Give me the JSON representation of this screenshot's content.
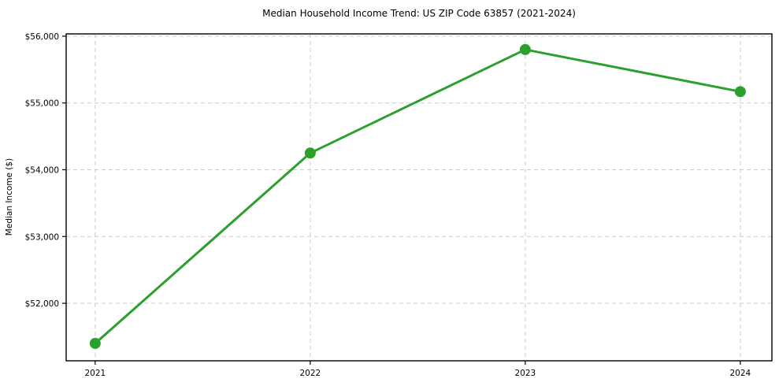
{
  "figure": {
    "background": "#ffffff"
  },
  "chart_data": {
    "type": "line",
    "title": "Median Household Income Trend: US ZIP Code 63857 (2021-2024)",
    "xlabel": "",
    "ylabel": "Median Income ($)",
    "x": [
      2021,
      2022,
      2023,
      2024
    ],
    "values": [
      51400,
      54250,
      55800,
      55170
    ],
    "xtick_labels": [
      "2021",
      "2022",
      "2023",
      "2024"
    ],
    "yticks": [
      52000,
      53000,
      54000,
      55000,
      56000
    ],
    "ytick_labels": [
      "$52,000",
      "$53,000",
      "$54,000",
      "$55,000",
      "$56,000"
    ],
    "xlim": [
      2020.865,
      2024.147
    ],
    "ylim": [
      51139,
      56035
    ],
    "grid": "dashed",
    "legend_position": "none",
    "line_color": "#2ca02c",
    "marker": "circle",
    "marker_radius": 7,
    "line_width": 3,
    "grid_color": "#cccccc",
    "axis_color": "#000000",
    "text_color": "#000000"
  }
}
